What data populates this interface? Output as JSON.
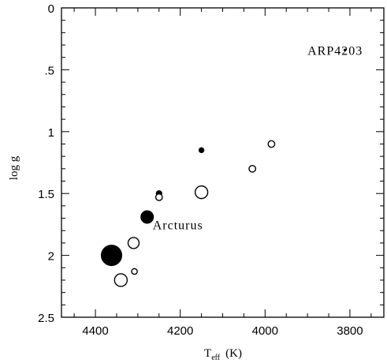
{
  "chart_data": {
    "type": "scatter",
    "title": "",
    "xlabel": "T",
    "xlabel_sub": "eff",
    "xlabel_unit": "(K)",
    "ylabel": "log g",
    "xlim": [
      4480,
      3720
    ],
    "ylim": [
      0,
      2.5
    ],
    "x_reversed": true,
    "y_reversed": true,
    "x_major_ticks": [
      4400,
      4200,
      4000,
      3800
    ],
    "x_tick_labels": [
      "4400",
      "4200",
      "4000",
      "3800"
    ],
    "x_minor_step": 50,
    "y_major_ticks": [
      0,
      0.5,
      1,
      1.5,
      2,
      2.5
    ],
    "y_tick_labels": [
      "0",
      ".5",
      "1",
      "1.5",
      "2",
      "2.5"
    ],
    "y_minor_step": 0.1,
    "grid": false,
    "series": [
      {
        "marker": "filled-circle",
        "color": "#000000",
        "points": [
          {
            "x": 4362,
            "y": 2.0,
            "size": 13
          },
          {
            "x": 4278,
            "y": 1.69,
            "size": 8
          },
          {
            "x": 4250,
            "y": 1.5,
            "size": 3.6
          },
          {
            "x": 4150,
            "y": 1.15,
            "size": 3.2
          }
        ]
      },
      {
        "marker": "open-circle",
        "color": "#000000",
        "points": [
          {
            "x": 4340,
            "y": 2.2,
            "size": 8
          },
          {
            "x": 4310,
            "y": 1.9,
            "size": 7
          },
          {
            "x": 4308,
            "y": 2.13,
            "size": 3.6
          },
          {
            "x": 4250,
            "y": 1.53,
            "size": 4.2
          },
          {
            "x": 4150,
            "y": 1.49,
            "size": 8
          },
          {
            "x": 4030,
            "y": 1.3,
            "size": 4.2
          },
          {
            "x": 3985,
            "y": 1.1,
            "size": 4.2
          }
        ]
      },
      {
        "marker": "dot",
        "color": "#000000",
        "points": [
          {
            "x": 3812,
            "y": 0.34,
            "size": 1.1
          }
        ]
      }
    ],
    "annotations": [
      {
        "text": "ARP4203",
        "x": 3900,
        "y": 0.34
      },
      {
        "text": "Arcturus",
        "x": 4265,
        "y": 1.75
      }
    ]
  }
}
